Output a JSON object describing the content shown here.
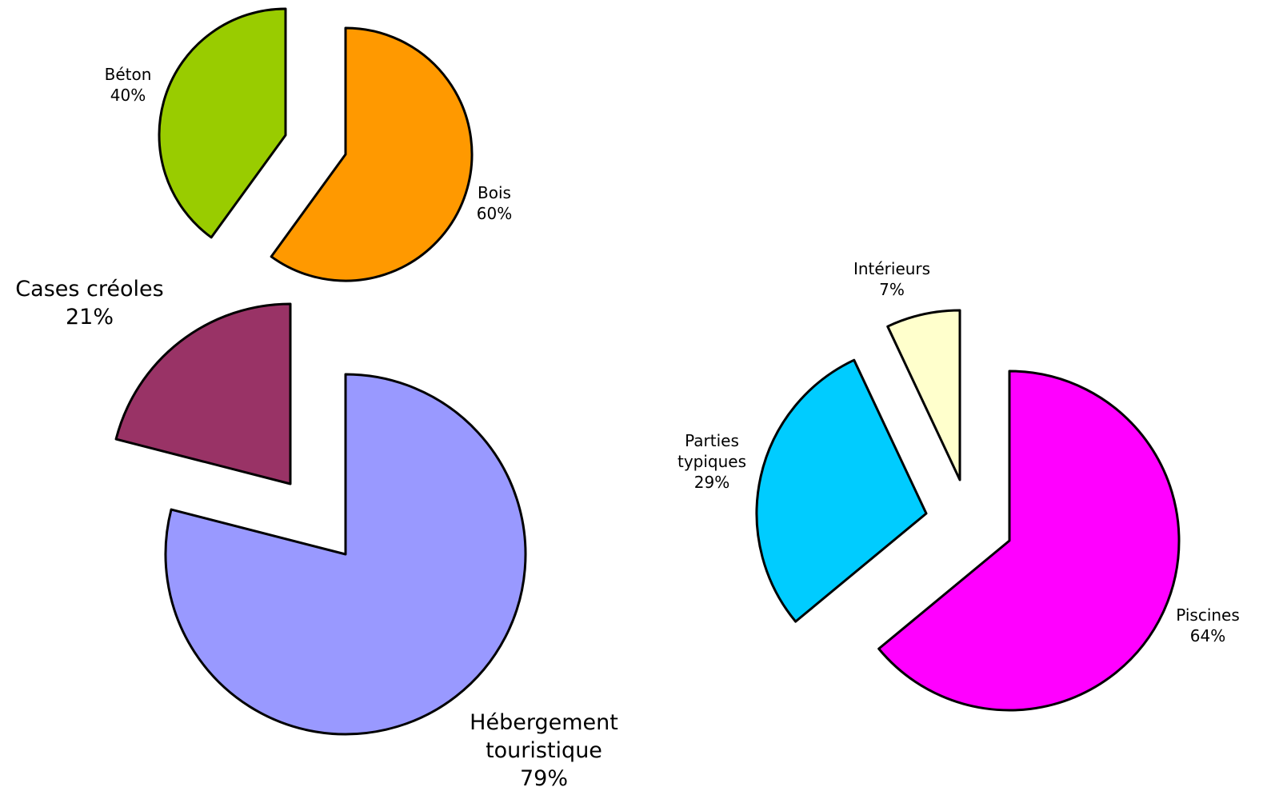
{
  "chart_data": [
    {
      "type": "pie",
      "categories": [
        "Bois",
        "Béton"
      ],
      "values": [
        60,
        40
      ],
      "value_labels": [
        "60%",
        "40%"
      ],
      "colors": [
        "#ff9900",
        "#99cc00"
      ]
    },
    {
      "type": "pie",
      "categories": [
        "Hébergement touristique",
        "Cases créoles"
      ],
      "values": [
        79,
        21
      ],
      "value_labels": [
        "79%",
        "21%"
      ],
      "colors": [
        "#9999ff",
        "#993366"
      ]
    },
    {
      "type": "pie",
      "categories": [
        "Piscines",
        "Parties typiques",
        "Intérieurs"
      ],
      "values": [
        64,
        29,
        7
      ],
      "value_labels": [
        "64%",
        "29%",
        "7%"
      ],
      "colors": [
        "#ff00ff",
        "#00ccff",
        "#ffffcc"
      ]
    }
  ]
}
